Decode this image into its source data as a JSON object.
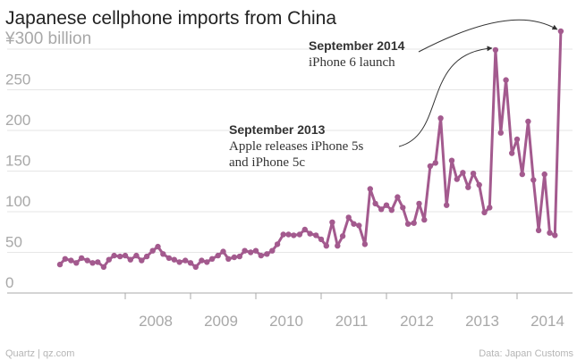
{
  "colors": {
    "series": "#a35a8e",
    "axis": "#a8a8a8",
    "grid": "#e6e6e6",
    "text": "#222222"
  },
  "footer": {
    "source_left": "Quartz | qz.com",
    "source_right": "Data: Japan Customs"
  },
  "chart_data": {
    "type": "line",
    "title": "Japanese cellphone imports from China",
    "ylabel": "",
    "xlabel": "",
    "y_unit_label": "¥300 billion",
    "ylim": [
      0,
      300
    ],
    "yticks": [
      0,
      50,
      100,
      150,
      200,
      250,
      300
    ],
    "ytick_labels": [
      "0",
      "50",
      "100",
      "150",
      "200",
      "250",
      "¥300 billion"
    ],
    "xlim": [
      2007.0,
      2014.83
    ],
    "xticks": [
      2008,
      2009,
      2010,
      2011,
      2012,
      2013,
      2014
    ],
    "xtick_labels": [
      "2008",
      "2009",
      "2010",
      "2011",
      "2012",
      "2013",
      "2014"
    ],
    "grid": true,
    "series": [
      {
        "name": "",
        "points": [
          [
            2007.0,
            35
          ],
          [
            2007.08,
            42
          ],
          [
            2007.17,
            40
          ],
          [
            2007.25,
            37
          ],
          [
            2007.33,
            43
          ],
          [
            2007.42,
            40
          ],
          [
            2007.5,
            37
          ],
          [
            2007.58,
            38
          ],
          [
            2007.67,
            32
          ],
          [
            2007.75,
            41
          ],
          [
            2007.83,
            46
          ],
          [
            2007.92,
            45
          ],
          [
            2008.0,
            46
          ],
          [
            2008.08,
            41
          ],
          [
            2008.17,
            46
          ],
          [
            2008.25,
            40
          ],
          [
            2008.33,
            45
          ],
          [
            2008.42,
            52
          ],
          [
            2008.5,
            57
          ],
          [
            2008.58,
            48
          ],
          [
            2008.67,
            43
          ],
          [
            2008.75,
            41
          ],
          [
            2008.83,
            38
          ],
          [
            2008.92,
            40
          ],
          [
            2009.0,
            37
          ],
          [
            2009.08,
            32
          ],
          [
            2009.17,
            40
          ],
          [
            2009.25,
            38
          ],
          [
            2009.33,
            42
          ],
          [
            2009.42,
            46
          ],
          [
            2009.5,
            51
          ],
          [
            2009.58,
            42
          ],
          [
            2009.67,
            44
          ],
          [
            2009.75,
            45
          ],
          [
            2009.83,
            52
          ],
          [
            2009.92,
            50
          ],
          [
            2010.0,
            52
          ],
          [
            2010.08,
            46
          ],
          [
            2010.17,
            48
          ],
          [
            2010.25,
            52
          ],
          [
            2010.33,
            60
          ],
          [
            2010.42,
            72
          ],
          [
            2010.5,
            72
          ],
          [
            2010.58,
            71
          ],
          [
            2010.67,
            72
          ],
          [
            2010.75,
            78
          ],
          [
            2010.83,
            73
          ],
          [
            2010.92,
            71
          ],
          [
            2011.0,
            66
          ],
          [
            2011.08,
            58
          ],
          [
            2011.17,
            87
          ],
          [
            2011.25,
            58
          ],
          [
            2011.33,
            70
          ],
          [
            2011.42,
            93
          ],
          [
            2011.5,
            85
          ],
          [
            2011.58,
            83
          ],
          [
            2011.67,
            60
          ],
          [
            2011.75,
            128
          ],
          [
            2011.83,
            110
          ],
          [
            2011.92,
            103
          ],
          [
            2012.0,
            108
          ],
          [
            2012.08,
            102
          ],
          [
            2012.17,
            118
          ],
          [
            2012.25,
            105
          ],
          [
            2012.33,
            85
          ],
          [
            2012.42,
            86
          ],
          [
            2012.5,
            110
          ],
          [
            2012.58,
            90
          ],
          [
            2012.67,
            156
          ],
          [
            2012.75,
            160
          ],
          [
            2012.83,
            215
          ],
          [
            2012.92,
            108
          ],
          [
            2013.0,
            163
          ],
          [
            2013.08,
            140
          ],
          [
            2013.17,
            148
          ],
          [
            2013.25,
            130
          ],
          [
            2013.33,
            147
          ],
          [
            2013.42,
            133
          ],
          [
            2013.5,
            99
          ],
          [
            2013.58,
            105
          ],
          [
            2013.67,
            299
          ],
          [
            2013.75,
            197
          ],
          [
            2013.83,
            262
          ],
          [
            2013.92,
            172
          ],
          [
            2014.0,
            189
          ],
          [
            2014.08,
            146
          ],
          [
            2014.17,
            211
          ],
          [
            2014.25,
            139
          ],
          [
            2014.33,
            77
          ],
          [
            2014.42,
            146
          ],
          [
            2014.5,
            74
          ],
          [
            2014.58,
            71
          ],
          [
            2014.67,
            322
          ]
        ]
      }
    ],
    "annotations": [
      {
        "id": "sep2013",
        "title": "September 2013",
        "lines": [
          "Apple releases iPhone 5s",
          "and iPhone 5c"
        ],
        "point": [
          2013.67,
          299
        ]
      },
      {
        "id": "sep2014",
        "title": "September 2014",
        "lines": [
          "iPhone 6 launch"
        ],
        "point": [
          2014.67,
          322
        ]
      }
    ]
  }
}
